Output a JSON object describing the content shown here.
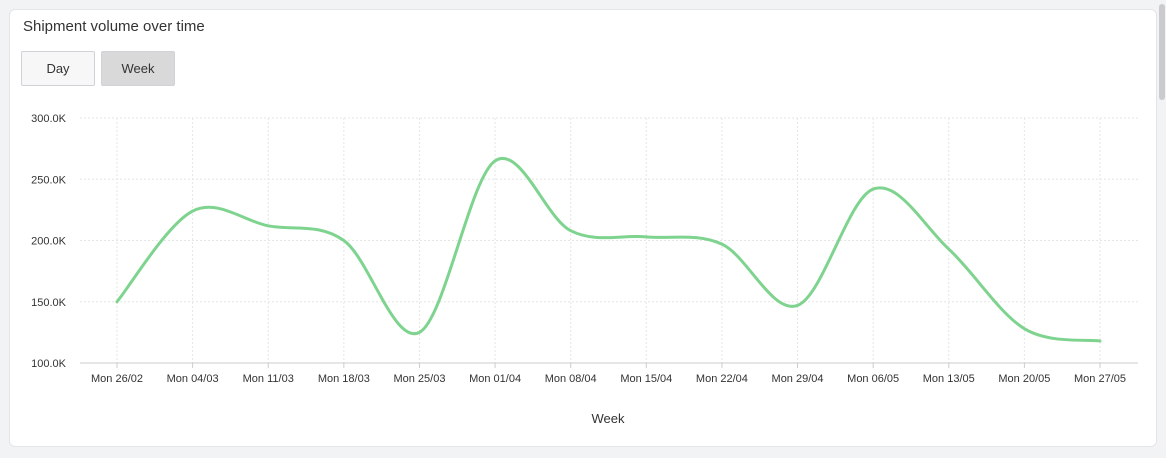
{
  "card": {
    "title": "Shipment volume over time"
  },
  "toggle": {
    "day_label": "Day",
    "week_label": "Week",
    "selected": "Week"
  },
  "colors": {
    "line": "#7ed48f",
    "grid": "#e6e6e6",
    "axis": "#cccccc",
    "text": "#333333"
  },
  "chart_data": {
    "type": "line",
    "title": "",
    "xlabel": "Week",
    "ylabel": "",
    "ylim": [
      100000,
      300000
    ],
    "yticks": [
      100000,
      150000,
      200000,
      250000,
      300000
    ],
    "ytick_labels": [
      "100.0K",
      "150.0K",
      "200.0K",
      "250.0K",
      "300.0K"
    ],
    "categories": [
      "Mon 26/02",
      "Mon 04/03",
      "Mon 11/03",
      "Mon 18/03",
      "Mon 25/03",
      "Mon 01/04",
      "Mon 08/04",
      "Mon 15/04",
      "Mon 22/04",
      "Mon 29/04",
      "Mon 06/05",
      "Mon 13/05",
      "Mon 20/05",
      "Mon 27/05"
    ],
    "series": [
      {
        "values": [
          150000,
          224000,
          212000,
          200000,
          125000,
          265000,
          208000,
          203000,
          197000,
          147000,
          242000,
          193000,
          128000,
          118000
        ]
      }
    ],
    "grid": true,
    "legend": "none"
  }
}
